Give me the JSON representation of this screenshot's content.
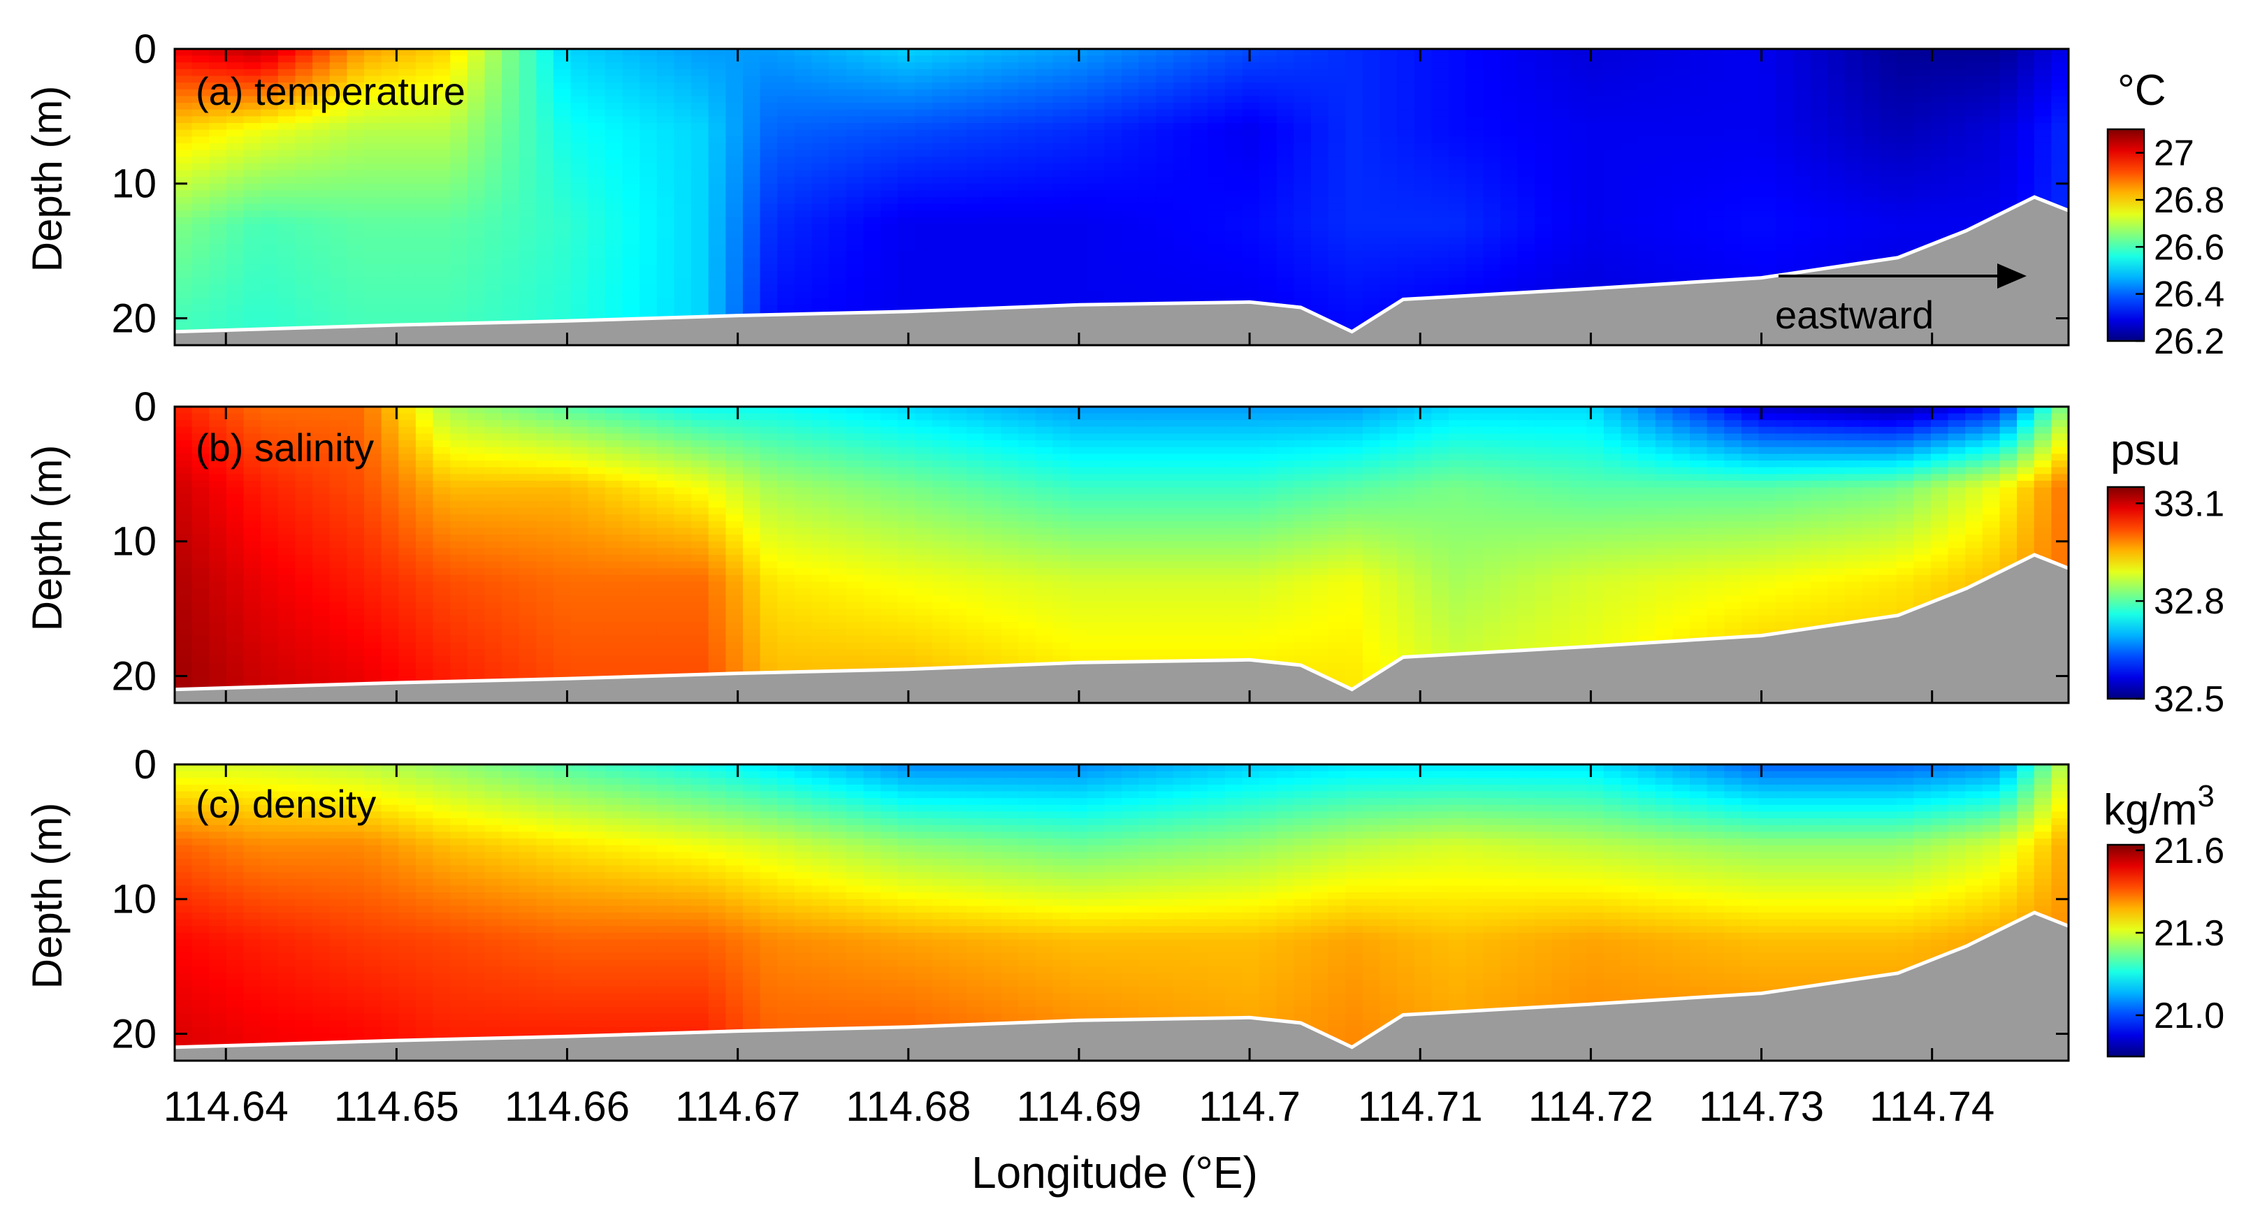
{
  "figure": {
    "xlabel": "Longitude (°E)"
  },
  "chart_data": [
    {
      "type": "heatmap",
      "panel_label": "(a) temperature",
      "variable": "temperature",
      "ylabel": "Depth (m)",
      "y_reversed": true,
      "ylim": [
        0,
        22
      ],
      "yticks": [
        0,
        10,
        20
      ],
      "xlim": [
        114.637,
        114.748
      ],
      "xticks": [
        114.64,
        114.65,
        114.66,
        114.67,
        114.68,
        114.69,
        114.7,
        114.71,
        114.72,
        114.73,
        114.74
      ],
      "xtick_labels": [
        "114.64",
        "114.65",
        "114.66",
        "114.67",
        "114.68",
        "114.69",
        "114.7",
        "114.71",
        "114.72",
        "114.73",
        "114.74"
      ],
      "colorbar": {
        "unit": "°C",
        "range": [
          26.2,
          27.1
        ],
        "ticks": [
          26.2,
          26.4,
          26.6,
          26.8,
          27
        ],
        "tick_labels": [
          "26.2",
          "26.4",
          "26.6",
          "26.8",
          "27"
        ]
      },
      "annotation": "eastward",
      "field": [
        [
          114.637,
          27.0,
          26.8,
          26.65,
          26.6
        ],
        [
          114.642,
          27.05,
          26.75,
          26.6,
          26.58
        ],
        [
          114.648,
          26.85,
          26.7,
          26.62,
          26.6
        ],
        [
          114.653,
          26.8,
          26.7,
          26.62,
          26.6
        ],
        [
          114.66,
          26.5,
          26.55,
          26.58,
          26.57
        ],
        [
          114.668,
          26.45,
          26.5,
          26.5,
          26.5
        ],
        [
          114.672,
          26.45,
          26.4,
          26.35,
          26.32
        ],
        [
          114.68,
          26.5,
          26.38,
          26.3,
          26.3
        ],
        [
          114.69,
          26.45,
          26.35,
          26.3,
          26.3
        ],
        [
          114.7,
          26.38,
          26.3,
          26.32,
          26.3
        ],
        [
          114.706,
          26.35,
          26.35,
          26.35,
          26.32
        ],
        [
          114.712,
          26.32,
          26.32,
          26.35,
          26.3
        ],
        [
          114.72,
          26.28,
          26.3,
          26.3,
          26.28
        ],
        [
          114.73,
          26.3,
          26.3,
          26.32,
          26.3
        ],
        [
          114.738,
          26.22,
          26.25,
          26.3,
          26.28
        ],
        [
          114.744,
          26.22,
          26.28,
          26.3,
          26.3
        ],
        [
          114.748,
          26.3,
          26.35,
          26.35,
          26.35
        ]
      ]
    },
    {
      "type": "heatmap",
      "panel_label": "(b) salinity",
      "variable": "salinity",
      "ylabel": "Depth (m)",
      "y_reversed": true,
      "ylim": [
        0,
        22
      ],
      "yticks": [
        0,
        10,
        20
      ],
      "xlim": [
        114.637,
        114.748
      ],
      "xticks": [
        114.64,
        114.65,
        114.66,
        114.67,
        114.68,
        114.69,
        114.7,
        114.71,
        114.72,
        114.73,
        114.74
      ],
      "xtick_labels": [
        "114.64",
        "114.65",
        "114.66",
        "114.67",
        "114.68",
        "114.69",
        "114.7",
        "114.71",
        "114.72",
        "114.73",
        "114.74"
      ],
      "colorbar": {
        "unit": "psu",
        "range": [
          32.5,
          33.15
        ],
        "ticks": [
          32.5,
          32.8,
          33.1
        ],
        "tick_labels": [
          "32.5",
          "32.8",
          "33.1"
        ]
      },
      "field": [
        [
          114.637,
          33.05,
          33.1,
          33.12,
          33.13
        ],
        [
          114.642,
          33.0,
          33.05,
          33.08,
          33.1
        ],
        [
          114.648,
          33.0,
          33.02,
          33.05,
          33.08
        ],
        [
          114.653,
          32.85,
          32.95,
          33.02,
          33.05
        ],
        [
          114.66,
          32.8,
          32.95,
          33.0,
          33.02
        ],
        [
          114.668,
          32.75,
          32.9,
          33.0,
          33.02
        ],
        [
          114.672,
          32.75,
          32.85,
          32.92,
          32.95
        ],
        [
          114.68,
          32.72,
          32.82,
          32.9,
          32.95
        ],
        [
          114.69,
          32.68,
          32.78,
          32.88,
          32.92
        ],
        [
          114.7,
          32.68,
          32.78,
          32.88,
          32.92
        ],
        [
          114.706,
          32.68,
          32.8,
          32.9,
          32.92
        ],
        [
          114.712,
          32.72,
          32.82,
          32.85,
          32.88
        ],
        [
          114.72,
          32.72,
          32.8,
          32.88,
          32.9
        ],
        [
          114.73,
          32.55,
          32.8,
          32.9,
          32.95
        ],
        [
          114.738,
          32.52,
          32.82,
          32.92,
          32.95
        ],
        [
          114.744,
          32.6,
          32.9,
          32.95,
          32.97
        ],
        [
          114.748,
          32.85,
          33.0,
          33.0,
          33.0
        ]
      ]
    },
    {
      "type": "heatmap",
      "panel_label": "(c) density",
      "variable": "density",
      "ylabel": "Depth (m)",
      "y_reversed": true,
      "ylim": [
        0,
        22
      ],
      "yticks": [
        0,
        10,
        20
      ],
      "xlim": [
        114.637,
        114.748
      ],
      "xticks": [
        114.64,
        114.65,
        114.66,
        114.67,
        114.68,
        114.69,
        114.7,
        114.71,
        114.72,
        114.73,
        114.74
      ],
      "xtick_labels": [
        "114.64",
        "114.65",
        "114.66",
        "114.67",
        "114.68",
        "114.69",
        "114.7",
        "114.71",
        "114.72",
        "114.73",
        "114.74"
      ],
      "colorbar": {
        "unit": "kg/m",
        "unit_superscript": "3",
        "range": [
          20.85,
          21.62
        ],
        "ticks": [
          21.0,
          21.3,
          21.6
        ],
        "tick_labels": [
          "21.0",
          "21.3",
          "21.6"
        ]
      },
      "field": [
        [
          114.637,
          21.3,
          21.45,
          21.52,
          21.55
        ],
        [
          114.642,
          21.3,
          21.42,
          21.5,
          21.53
        ],
        [
          114.648,
          21.28,
          21.42,
          21.48,
          21.52
        ],
        [
          114.653,
          21.25,
          21.38,
          21.47,
          21.5
        ],
        [
          114.66,
          21.2,
          21.35,
          21.45,
          21.5
        ],
        [
          114.668,
          21.15,
          21.32,
          21.45,
          21.5
        ],
        [
          114.672,
          21.12,
          21.3,
          21.42,
          21.45
        ],
        [
          114.68,
          21.05,
          21.25,
          21.4,
          21.45
        ],
        [
          114.69,
          21.05,
          21.22,
          21.38,
          21.42
        ],
        [
          114.7,
          21.1,
          21.25,
          21.38,
          21.4
        ],
        [
          114.706,
          21.12,
          21.28,
          21.4,
          21.42
        ],
        [
          114.712,
          21.12,
          21.3,
          21.38,
          21.4
        ],
        [
          114.72,
          21.12,
          21.28,
          21.4,
          21.42
        ],
        [
          114.73,
          21.02,
          21.25,
          21.38,
          21.42
        ],
        [
          114.738,
          21.02,
          21.25,
          21.38,
          21.42
        ],
        [
          114.744,
          21.05,
          21.3,
          21.4,
          21.42
        ],
        [
          114.748,
          21.3,
          21.4,
          21.42,
          21.45
        ]
      ]
    }
  ],
  "field_depths": [
    0,
    6,
    13,
    20
  ],
  "seafloor_depth": [
    [
      114.637,
      21.0
    ],
    [
      114.65,
      20.5
    ],
    [
      114.66,
      20.2
    ],
    [
      114.67,
      19.8
    ],
    [
      114.68,
      19.5
    ],
    [
      114.69,
      19.0
    ],
    [
      114.7,
      18.8
    ],
    [
      114.703,
      19.2
    ],
    [
      114.706,
      21.0
    ],
    [
      114.709,
      18.6
    ],
    [
      114.72,
      17.8
    ],
    [
      114.73,
      17.0
    ],
    [
      114.738,
      15.5
    ],
    [
      114.742,
      13.5
    ],
    [
      114.746,
      11.0
    ],
    [
      114.748,
      12.0
    ]
  ]
}
